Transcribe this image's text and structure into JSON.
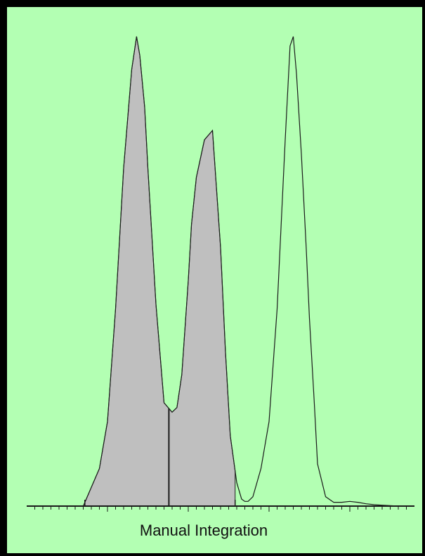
{
  "caption": "Manual Integration",
  "colors": {
    "background": "#b3ffb3",
    "trace": "#1a1a1a",
    "fill": "#bfbfbf",
    "frame": "#000000"
  },
  "chart_data": {
    "type": "line",
    "title": "",
    "xlabel": "Manual Integration",
    "ylabel": "",
    "grid": false,
    "legend": "none",
    "xlim": [
      0,
      24
    ],
    "ylim": [
      0,
      1
    ],
    "x_ticks": {
      "minor_step": 0.5,
      "major_step": 5
    },
    "x": [
      0,
      3,
      3.5,
      4,
      4.5,
      5,
      5.5,
      6,
      6.5,
      6.8,
      7,
      7.3,
      7.5,
      8,
      8.5,
      9,
      9.3,
      9.6,
      10,
      10.2,
      10.5,
      11,
      11.5,
      12,
      12.3,
      12.6,
      13,
      13.3,
      13.5,
      13.7,
      14,
      14.5,
      15,
      15.5,
      16,
      16.3,
      16.5,
      16.7,
      17,
      17.3,
      17.5,
      17.8,
      18,
      18.5,
      19,
      19.5,
      20,
      20.5,
      21,
      21.5,
      22,
      23,
      24
    ],
    "y": [
      0,
      0,
      0,
      0.04,
      0.08,
      0.18,
      0.42,
      0.72,
      0.93,
      1.0,
      0.96,
      0.85,
      0.72,
      0.43,
      0.22,
      0.2,
      0.21,
      0.28,
      0.48,
      0.6,
      0.7,
      0.78,
      0.8,
      0.55,
      0.33,
      0.15,
      0.05,
      0.015,
      0.01,
      0.01,
      0.02,
      0.08,
      0.18,
      0.42,
      0.78,
      0.98,
      1.0,
      0.92,
      0.75,
      0.55,
      0.4,
      0.22,
      0.09,
      0.02,
      0.008,
      0.008,
      0.01,
      0.008,
      0.005,
      0.003,
      0.002,
      0,
      0
    ],
    "integrated_region": {
      "start": 3.6,
      "end": 12.9,
      "split": 8.8
    }
  }
}
